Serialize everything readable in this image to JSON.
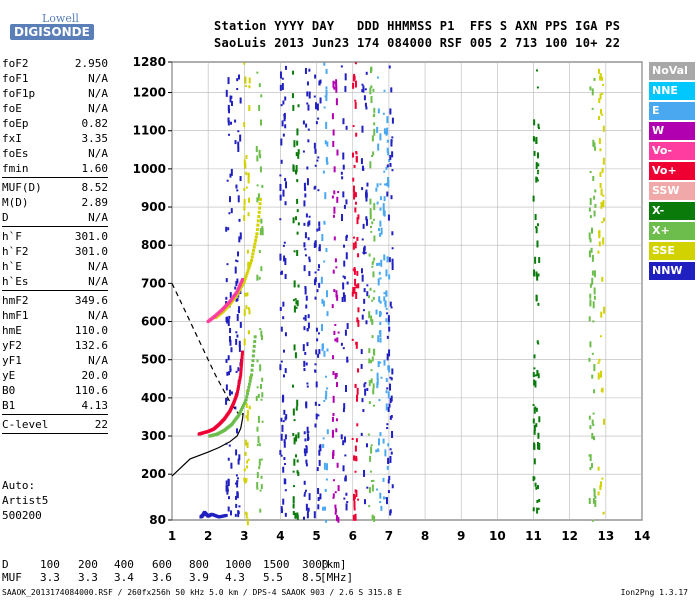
{
  "logo": {
    "top": "Lowell",
    "main": "DIGISONDE"
  },
  "header": {
    "line1": "Station YYYY DAY   DDD HHMMSS P1  FFS S AXN PPS IGA PS",
    "line2": "SaoLuis 2013 Jun23 174 084000 RSF 005 2 713 100 10+ 22"
  },
  "params": [
    {
      "name": "foF2",
      "value": "2.950"
    },
    {
      "name": "foF1",
      "value": "N/A"
    },
    {
      "name": "foF1p",
      "value": "N/A"
    },
    {
      "name": "foE",
      "value": "N/A"
    },
    {
      "name": "foEp",
      "value": "0.82"
    },
    {
      "name": "fxI",
      "value": "3.35"
    },
    {
      "name": "foEs",
      "value": "N/A"
    },
    {
      "name": "fmin",
      "value": "1.60"
    },
    {
      "name": "MUF(D)",
      "value": "8.52",
      "sep": true
    },
    {
      "name": "M(D)",
      "value": "2.89"
    },
    {
      "name": "D",
      "value": "N/A"
    },
    {
      "name": "h`F",
      "value": "301.0",
      "sep": true
    },
    {
      "name": "h`F2",
      "value": "301.0"
    },
    {
      "name": "h`E",
      "value": "N/A"
    },
    {
      "name": "h`Es",
      "value": "N/A"
    },
    {
      "name": "hmF2",
      "value": "349.6",
      "sep": true
    },
    {
      "name": "hmF1",
      "value": "N/A"
    },
    {
      "name": "hmE",
      "value": "110.0"
    },
    {
      "name": "yF2",
      "value": "132.6"
    },
    {
      "name": "yF1",
      "value": "N/A"
    },
    {
      "name": "yE",
      "value": "20.0"
    },
    {
      "name": "B0",
      "value": "110.6"
    },
    {
      "name": "B1",
      "value": "4.13"
    },
    {
      "name": "C-level",
      "value": "22",
      "sep": true
    }
  ],
  "auto": {
    "line1": "Auto:",
    "line2": "Artist5",
    "line3": "500200"
  },
  "legend": [
    {
      "label": "NoVal",
      "color": "#a8a8a8"
    },
    {
      "label": "NNE",
      "color": "#00c8ff"
    },
    {
      "label": "E",
      "color": "#4aa8f0"
    },
    {
      "label": "W",
      "color": "#b000b0"
    },
    {
      "label": "Vo-",
      "color": "#ff3ca0"
    },
    {
      "label": "Vo+",
      "color": "#ee0033"
    },
    {
      "label": "SSW",
      "color": "#f0a8a8"
    },
    {
      "label": "X-",
      "color": "#0a7a0a"
    },
    {
      "label": "X+",
      "color": "#6cbd4c"
    },
    {
      "label": "SSE",
      "color": "#d2d200"
    },
    {
      "label": "NNW",
      "color": "#2020c0"
    }
  ],
  "bottom_table": {
    "d_label": "D",
    "d_values": [
      "100",
      "200",
      "400",
      "600",
      "800",
      "1000",
      "1500",
      "3000"
    ],
    "d_unit": "[km]",
    "muf_label": "MUF",
    "muf_values": [
      "3.3",
      "3.3",
      "3.4",
      "3.6",
      "3.9",
      "4.3",
      "5.5",
      "8.5"
    ],
    "muf_unit": "[MHz]"
  },
  "footer": {
    "left": "SAAOK_2013174084000.RSF / 260fx256h 50 kHz 5.0 km / DPS-4 SAAOK 903 / 2.6 S 315.8 E",
    "right": "Ion2Png 1.3.17"
  },
  "chart_data": {
    "type": "scatter",
    "xlim": [
      1,
      14
    ],
    "ylim": [
      80,
      1280
    ],
    "x_ticks": [
      1,
      2,
      3,
      4,
      5,
      6,
      7,
      8,
      9,
      10,
      11,
      12,
      13,
      14
    ],
    "y_ticks": [
      80,
      200,
      300,
      400,
      500,
      600,
      700,
      800,
      900,
      1000,
      1100,
      1200,
      1280
    ],
    "grid": true,
    "traces": [
      {
        "name": "Vo+",
        "color": "#ee0033",
        "x": [
          1.75,
          1.85,
          2.0,
          2.15,
          2.3,
          2.45,
          2.6,
          2.7,
          2.8,
          2.9,
          2.95
        ],
        "y": [
          305,
          308,
          312,
          318,
          330,
          345,
          365,
          385,
          410,
          460,
          520
        ]
      },
      {
        "name": "X+",
        "color": "#6cbd4c",
        "x": [
          2.05,
          2.25,
          2.45,
          2.65,
          2.85,
          3.05,
          3.2,
          3.3
        ],
        "y": [
          300,
          305,
          315,
          330,
          355,
          395,
          460,
          560
        ]
      },
      {
        "name": "SSE",
        "color": "#d2d200",
        "x": [
          2.2,
          2.4,
          2.6,
          2.8,
          3.0,
          3.2,
          3.35,
          3.45
        ],
        "y": [
          610,
          625,
          645,
          670,
          705,
          760,
          830,
          920
        ]
      },
      {
        "name": "Vo-",
        "color": "#ff3ca0",
        "x": [
          2.0,
          2.2,
          2.4,
          2.6,
          2.8,
          2.95
        ],
        "y": [
          600,
          615,
          632,
          652,
          678,
          710
        ]
      },
      {
        "name": "NNW",
        "color": "#2020c0",
        "x": [
          1.8,
          1.85,
          1.9,
          2.0,
          2.1,
          2.3,
          2.5
        ],
        "y": [
          88,
          92,
          100,
          90,
          95,
          88,
          92
        ]
      }
    ],
    "profile": {
      "x": [
        1.0,
        1.5,
        2.0,
        2.3,
        2.6,
        2.8,
        2.9,
        2.95,
        2.97
      ],
      "y": [
        195,
        240,
        258,
        270,
        285,
        300,
        320,
        345,
        360
      ]
    },
    "profile_dashed": {
      "x": [
        1.0,
        1.4,
        1.8,
        2.2,
        2.6,
        2.9,
        2.97
      ],
      "y": [
        700,
        620,
        540,
        460,
        390,
        350,
        360
      ]
    },
    "noise_columns": [
      {
        "x": 2.55,
        "color": "#2020c0"
      },
      {
        "x": 2.8,
        "color": "#2020c0"
      },
      {
        "x": 3.05,
        "color": "#d2d200"
      },
      {
        "x": 3.4,
        "color": "#6cbd4c"
      },
      {
        "x": 4.05,
        "color": "#2020c0"
      },
      {
        "x": 4.4,
        "color": "#0a7a0a"
      },
      {
        "x": 4.7,
        "color": "#2020c0"
      },
      {
        "x": 5.0,
        "color": "#2020c0"
      },
      {
        "x": 5.2,
        "color": "#4aa8f0"
      },
      {
        "x": 5.5,
        "color": "#b000b0"
      },
      {
        "x": 5.75,
        "color": "#2020c0"
      },
      {
        "x": 6.05,
        "color": "#ee0033"
      },
      {
        "x": 6.3,
        "color": "#2020c0"
      },
      {
        "x": 6.5,
        "color": "#6cbd4c"
      },
      {
        "x": 6.7,
        "color": "#4aa8f0"
      },
      {
        "x": 6.9,
        "color": "#4aa8f0"
      },
      {
        "x": 7.0,
        "color": "#2020c0"
      },
      {
        "x": 11.05,
        "color": "#0a7a0a"
      },
      {
        "x": 12.6,
        "color": "#6cbd4c"
      },
      {
        "x": 12.85,
        "color": "#d2d200"
      }
    ]
  }
}
